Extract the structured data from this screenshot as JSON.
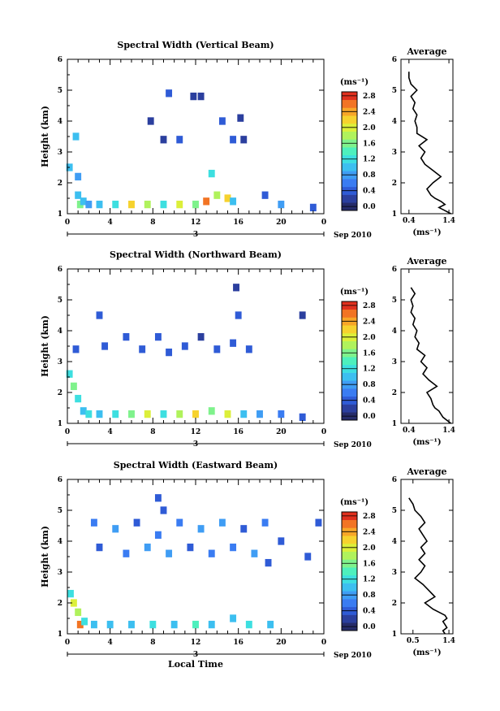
{
  "chart_data": [
    {
      "type": "heatmap",
      "title": "Spectral Width (Vertical Beam)",
      "xlabel": "",
      "ylabel": "Height (km)",
      "xlim": [
        0,
        24
      ],
      "ylim": [
        1,
        6
      ],
      "xticks": [
        "0",
        "4",
        "8",
        "12",
        "16",
        "20",
        "0"
      ],
      "yticks": [
        "1",
        "2",
        "3",
        "4",
        "5",
        "6"
      ],
      "date_marker": "3",
      "date_label": "Sep 2010",
      "colorbar": {
        "unit": "(ms⁻¹)",
        "ticks": [
          "0.0",
          "0.4",
          "0.8",
          "1.2",
          "1.6",
          "2.0",
          "2.4",
          "2.8"
        ],
        "range": [
          0,
          3.0
        ]
      },
      "cells": [
        [
          0.2,
          2.5,
          1.0
        ],
        [
          0.8,
          3.5,
          1.0
        ],
        [
          1.0,
          2.2,
          0.9
        ],
        [
          1.0,
          1.6,
          1.2
        ],
        [
          1.2,
          1.3,
          1.6
        ],
        [
          1.5,
          1.4,
          1.2
        ],
        [
          2.0,
          1.3,
          0.9
        ],
        [
          3.0,
          1.3,
          1.1
        ],
        [
          4.5,
          1.3,
          1.4
        ],
        [
          6.0,
          1.3,
          2.2
        ],
        [
          7.5,
          1.3,
          1.9
        ],
        [
          9.0,
          1.3,
          1.3
        ],
        [
          10.5,
          1.3,
          2.0
        ],
        [
          12.0,
          1.3,
          1.6
        ],
        [
          13.0,
          1.4,
          2.6
        ],
        [
          14.0,
          1.6,
          1.9
        ],
        [
          15.0,
          1.5,
          2.3
        ],
        [
          15.5,
          1.4,
          1.1
        ],
        [
          18.5,
          1.6,
          0.5
        ],
        [
          20.0,
          1.3,
          0.9
        ],
        [
          23.0,
          1.2,
          0.4
        ],
        [
          9.5,
          4.9,
          0.4
        ],
        [
          11.8,
          4.8,
          0.3
        ],
        [
          12.5,
          4.8,
          0.3
        ],
        [
          7.8,
          4.0,
          0.3
        ],
        [
          9.0,
          3.4,
          0.3
        ],
        [
          10.5,
          3.4,
          0.4
        ],
        [
          14.5,
          4.0,
          0.4
        ],
        [
          15.5,
          3.4,
          0.4
        ],
        [
          16.5,
          3.4,
          0.3
        ],
        [
          16.2,
          4.1,
          0.3
        ],
        [
          13.5,
          2.3,
          1.4
        ]
      ],
      "average": {
        "title": "Average",
        "xlabel": "(ms⁻¹)",
        "xticks": [
          "0.4",
          "1.4"
        ],
        "xlim": [
          0.2,
          1.5
        ],
        "height": [
          1.0,
          1.1,
          1.2,
          1.3,
          1.4,
          1.5,
          1.6,
          1.8,
          2.0,
          2.2,
          2.4,
          2.6,
          2.8,
          3.0,
          3.2,
          3.4,
          3.6,
          3.8,
          4.0,
          4.2,
          4.4,
          4.6,
          4.8,
          5.0,
          5.2,
          5.4,
          5.6
        ],
        "values": [
          1.45,
          1.3,
          1.15,
          1.3,
          1.2,
          1.05,
          0.95,
          0.85,
          1.0,
          1.2,
          1.0,
          0.8,
          0.7,
          0.8,
          0.65,
          0.85,
          0.6,
          0.6,
          0.55,
          0.6,
          0.5,
          0.55,
          0.45,
          0.6,
          0.45,
          0.4,
          0.4
        ]
      }
    },
    {
      "type": "heatmap",
      "title": "Spectral Width (Northward Beam)",
      "xlabel": "",
      "ylabel": "Height (km)",
      "xlim": [
        0,
        24
      ],
      "ylim": [
        1,
        6
      ],
      "xticks": [
        "0",
        "4",
        "8",
        "12",
        "16",
        "20",
        "0"
      ],
      "yticks": [
        "1",
        "2",
        "3",
        "4",
        "5",
        "6"
      ],
      "date_marker": "3",
      "date_label": "Sep 2010",
      "colorbar": {
        "unit": "(ms⁻¹)",
        "ticks": [
          "0.0",
          "0.4",
          "0.8",
          "1.2",
          "1.6",
          "2.0",
          "2.4",
          "2.8"
        ],
        "range": [
          0,
          3.0
        ]
      },
      "cells": [
        [
          0.2,
          2.6,
          1.3
        ],
        [
          0.6,
          2.2,
          1.6
        ],
        [
          1.0,
          1.8,
          1.4
        ],
        [
          1.5,
          1.4,
          1.2
        ],
        [
          2.0,
          1.3,
          1.3
        ],
        [
          3.0,
          1.3,
          1.0
        ],
        [
          4.5,
          1.3,
          1.3
        ],
        [
          6.0,
          1.3,
          1.6
        ],
        [
          7.5,
          1.3,
          2.0
        ],
        [
          9.0,
          1.3,
          1.4
        ],
        [
          10.5,
          1.3,
          1.9
        ],
        [
          12.0,
          1.3,
          2.4
        ],
        [
          13.5,
          1.4,
          1.7
        ],
        [
          15.0,
          1.3,
          2.0
        ],
        [
          16.5,
          1.3,
          1.2
        ],
        [
          18.0,
          1.3,
          0.9
        ],
        [
          20.0,
          1.3,
          0.7
        ],
        [
          22.0,
          1.2,
          0.5
        ],
        [
          3.0,
          4.5,
          0.4
        ],
        [
          3.5,
          3.5,
          0.5
        ],
        [
          5.5,
          3.8,
          0.4
        ],
        [
          7.0,
          3.4,
          0.5
        ],
        [
          8.5,
          3.8,
          0.4
        ],
        [
          9.5,
          3.3,
          0.5
        ],
        [
          11.0,
          3.5,
          0.4
        ],
        [
          12.5,
          3.8,
          0.3
        ],
        [
          14.0,
          3.4,
          0.4
        ],
        [
          15.5,
          3.6,
          0.6
        ],
        [
          16.0,
          4.5,
          0.4
        ],
        [
          17.0,
          3.4,
          0.5
        ],
        [
          0.8,
          3.4,
          0.6
        ],
        [
          15.8,
          5.4,
          0.3
        ],
        [
          22.0,
          4.5,
          0.3
        ]
      ],
      "average": {
        "title": "Average",
        "xlabel": "(ms⁻¹)",
        "xticks": [
          "0.4",
          "1.4"
        ],
        "xlim": [
          0.2,
          1.5
        ],
        "height": [
          1.0,
          1.1,
          1.2,
          1.3,
          1.4,
          1.5,
          1.6,
          1.8,
          2.0,
          2.2,
          2.4,
          2.6,
          2.8,
          3.0,
          3.2,
          3.4,
          3.6,
          3.8,
          4.0,
          4.2,
          4.4,
          4.6,
          4.8,
          5.0,
          5.2,
          5.4
        ],
        "values": [
          1.45,
          1.35,
          1.25,
          1.2,
          1.15,
          1.05,
          1.0,
          0.95,
          0.85,
          1.1,
          0.9,
          0.75,
          0.85,
          0.7,
          0.8,
          0.6,
          0.65,
          0.55,
          0.6,
          0.5,
          0.55,
          0.45,
          0.5,
          0.45,
          0.55,
          0.45
        ]
      }
    },
    {
      "type": "heatmap",
      "title": "Spectral Width (Eastward Beam)",
      "xlabel": "Local Time",
      "ylabel": "Height (km)",
      "xlim": [
        0,
        24
      ],
      "ylim": [
        1,
        6
      ],
      "xticks": [
        "0",
        "4",
        "8",
        "12",
        "16",
        "20",
        "0"
      ],
      "yticks": [
        "1",
        "2",
        "3",
        "4",
        "5",
        "6"
      ],
      "date_marker": "3",
      "date_label": "Sep 2010",
      "colorbar": {
        "unit": "(ms⁻¹)",
        "ticks": [
          "0.0",
          "0.4",
          "0.8",
          "1.2",
          "1.6",
          "2.0",
          "2.4",
          "2.8"
        ],
        "range": [
          0,
          3.0
        ]
      },
      "cells": [
        [
          0.3,
          2.3,
          1.4
        ],
        [
          0.6,
          2.0,
          2.0
        ],
        [
          1.0,
          1.7,
          1.8
        ],
        [
          1.2,
          1.3,
          2.6
        ],
        [
          1.6,
          1.4,
          1.4
        ],
        [
          2.5,
          1.3,
          1.2
        ],
        [
          4.0,
          1.3,
          1.0
        ],
        [
          6.0,
          1.3,
          1.2
        ],
        [
          8.0,
          1.3,
          1.3
        ],
        [
          10.0,
          1.3,
          1.1
        ],
        [
          12.0,
          1.3,
          1.5
        ],
        [
          13.5,
          1.3,
          1.2
        ],
        [
          15.5,
          1.5,
          1.1
        ],
        [
          17.0,
          1.3,
          1.3
        ],
        [
          19.0,
          1.3,
          1.1
        ],
        [
          2.5,
          4.6,
          0.7
        ],
        [
          3.0,
          3.8,
          0.6
        ],
        [
          4.5,
          4.4,
          0.8
        ],
        [
          5.5,
          3.6,
          0.7
        ],
        [
          6.5,
          4.6,
          0.6
        ],
        [
          7.5,
          3.8,
          0.9
        ],
        [
          8.5,
          4.2,
          0.7
        ],
        [
          9.5,
          3.6,
          0.8
        ],
        [
          10.5,
          4.6,
          0.7
        ],
        [
          11.5,
          3.8,
          0.6
        ],
        [
          12.5,
          4.4,
          0.8
        ],
        [
          13.5,
          3.6,
          0.7
        ],
        [
          14.5,
          4.6,
          0.9
        ],
        [
          15.5,
          3.8,
          0.7
        ],
        [
          16.5,
          4.4,
          0.6
        ],
        [
          17.5,
          3.6,
          0.8
        ],
        [
          18.5,
          4.6,
          0.7
        ],
        [
          18.8,
          3.3,
          0.6
        ],
        [
          20.0,
          4.0,
          0.5
        ],
        [
          22.5,
          3.5,
          0.4
        ],
        [
          23.5,
          4.6,
          0.4
        ],
        [
          8.5,
          5.4,
          0.4
        ],
        [
          9.0,
          5.0,
          0.5
        ]
      ],
      "average": {
        "title": "Average",
        "xlabel": "(ms⁻¹)",
        "xticks": [
          "0.5",
          "1.4"
        ],
        "xlim": [
          0.2,
          1.5
        ],
        "height": [
          1.0,
          1.1,
          1.2,
          1.3,
          1.4,
          1.5,
          1.6,
          1.8,
          2.0,
          2.2,
          2.4,
          2.6,
          2.8,
          3.0,
          3.2,
          3.4,
          3.6,
          3.8,
          4.0,
          4.2,
          4.4,
          4.6,
          4.8,
          5.0,
          5.2,
          5.4
        ],
        "values": [
          1.3,
          1.25,
          1.35,
          1.3,
          1.25,
          1.35,
          1.3,
          1.0,
          0.8,
          1.05,
          0.9,
          0.75,
          0.55,
          0.7,
          0.8,
          0.65,
          0.8,
          0.7,
          0.85,
          0.75,
          0.65,
          0.8,
          0.7,
          0.55,
          0.5,
          0.4
        ]
      }
    }
  ]
}
